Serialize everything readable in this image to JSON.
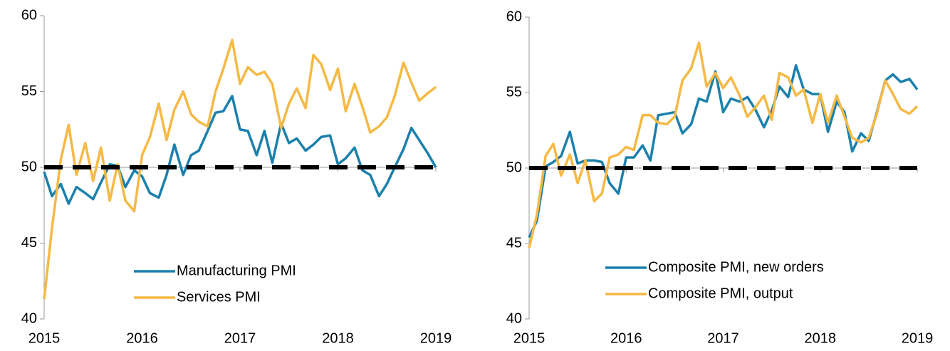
{
  "chart_data": [
    {
      "type": "line",
      "x": [
        2015,
        2015.08,
        2015.17,
        2015.25,
        2015.33,
        2015.42,
        2015.5,
        2015.58,
        2015.67,
        2015.75,
        2015.83,
        2015.92,
        2016,
        2016.08,
        2016.17,
        2016.25,
        2016.33,
        2016.42,
        2016.5,
        2016.58,
        2016.67,
        2016.75,
        2016.83,
        2016.92,
        2017,
        2017.08,
        2017.17,
        2017.25,
        2017.33,
        2017.42,
        2017.5,
        2017.58,
        2017.67,
        2017.75,
        2017.83,
        2017.92,
        2018,
        2018.08,
        2018.17,
        2018.25,
        2018.33,
        2018.42,
        2018.5,
        2018.58,
        2018.67,
        2018.75,
        2018.83,
        2018.92,
        2019
      ],
      "series": [
        {
          "name": "Manufacturing PMI",
          "color": "#1b80ad",
          "values": [
            49.7,
            48.1,
            48.9,
            47.6,
            48.7,
            48.3,
            47.9,
            49.0,
            50.2,
            50.1,
            48.7,
            49.8,
            49.4,
            48.3,
            48.0,
            49.5,
            51.5,
            49.5,
            50.8,
            51.1,
            52.4,
            53.6,
            53.7,
            54.7,
            52.5,
            52.4,
            50.8,
            52.4,
            50.3,
            52.9,
            51.6,
            51.9,
            51.1,
            51.5,
            52.0,
            52.1,
            50.2,
            50.6,
            51.3,
            49.8,
            49.5,
            48.1,
            48.9,
            50.0,
            51.2,
            52.6,
            51.8,
            50.9,
            50.0
          ]
        },
        {
          "name": "Services PMI",
          "color": "#f5b945",
          "values": [
            41.3,
            46.0,
            50.5,
            52.8,
            49.5,
            51.6,
            49.1,
            51.3,
            47.8,
            50.2,
            47.8,
            47.1,
            50.8,
            52.0,
            54.2,
            51.8,
            53.8,
            55.0,
            53.5,
            53.0,
            52.7,
            55.0,
            56.5,
            58.4,
            55.5,
            56.6,
            56.1,
            56.3,
            55.5,
            52.6,
            54.2,
            55.2,
            53.9,
            57.4,
            56.8,
            55.1,
            56.5,
            53.7,
            55.5,
            54.0,
            52.3,
            52.7,
            53.3,
            54.7,
            56.9,
            55.6,
            54.4,
            54.9,
            55.3
          ]
        }
      ],
      "reference_line": 50,
      "xlim": [
        2015,
        2019
      ],
      "xticks": [
        2015,
        2016,
        2017,
        2018,
        2019
      ],
      "ylim": [
        40,
        60
      ],
      "yticks": [
        40,
        45,
        50,
        55,
        60
      ]
    },
    {
      "type": "line",
      "x": [
        2015,
        2015.08,
        2015.17,
        2015.25,
        2015.33,
        2015.42,
        2015.5,
        2015.58,
        2015.67,
        2015.75,
        2015.83,
        2015.92,
        2016,
        2016.08,
        2016.17,
        2016.25,
        2016.33,
        2016.42,
        2016.5,
        2016.58,
        2016.67,
        2016.75,
        2016.83,
        2016.92,
        2017,
        2017.08,
        2017.17,
        2017.25,
        2017.33,
        2017.42,
        2017.5,
        2017.58,
        2017.67,
        2017.75,
        2017.83,
        2017.92,
        2018,
        2018.08,
        2018.17,
        2018.25,
        2018.33,
        2018.42,
        2018.5,
        2018.58,
        2018.67,
        2018.75,
        2018.83,
        2018.92,
        2019
      ],
      "series": [
        {
          "name": "Composite PMI, new orders",
          "color": "#1b80ad",
          "values": [
            45.4,
            46.5,
            50.1,
            50.4,
            50.8,
            52.4,
            50.3,
            50.5,
            50.5,
            50.4,
            49.0,
            48.3,
            50.7,
            50.7,
            51.5,
            50.5,
            53.5,
            53.6,
            53.7,
            52.3,
            52.9,
            54.6,
            54.4,
            56.4,
            53.7,
            54.6,
            54.4,
            54.7,
            53.9,
            52.7,
            53.8,
            55.4,
            54.7,
            56.8,
            55.2,
            54.9,
            54.9,
            52.4,
            54.4,
            53.7,
            51.1,
            52.3,
            51.8,
            53.6,
            55.8,
            56.2,
            55.7,
            55.9,
            55.2
          ]
        },
        {
          "name": "Composite PMI, output",
          "color": "#f5b945",
          "values": [
            44.7,
            46.9,
            50.8,
            51.6,
            49.5,
            50.9,
            49.0,
            50.5,
            47.8,
            48.3,
            50.7,
            50.9,
            51.4,
            51.2,
            53.5,
            53.5,
            53.0,
            52.9,
            53.4,
            55.8,
            56.6,
            58.3,
            55.4,
            56.3,
            55.3,
            56.0,
            54.8,
            53.4,
            54.0,
            54.8,
            53.2,
            56.3,
            56.0,
            54.8,
            55.2,
            53.0,
            54.9,
            53.0,
            54.8,
            53.4,
            52.0,
            51.7,
            52.0,
            53.5,
            55.8,
            54.9,
            53.9,
            53.6,
            54.1
          ]
        }
      ],
      "reference_line": 50,
      "xlim": [
        2015,
        2019
      ],
      "xticks": [
        2015,
        2016,
        2017,
        2018,
        2019
      ],
      "ylim": [
        40,
        60
      ],
      "yticks": [
        40,
        45,
        50,
        55,
        60
      ]
    }
  ]
}
